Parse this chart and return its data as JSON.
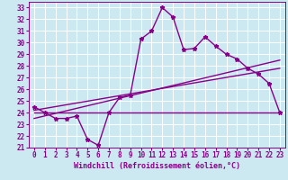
{
  "xlabel": "Windchill (Refroidissement éolien,°C)",
  "bg_color": "#cce8f0",
  "line_color": "#880088",
  "grid_color": "#ffffff",
  "xlim": [
    -0.5,
    23.5
  ],
  "ylim": [
    21,
    33.5
  ],
  "xticks": [
    0,
    1,
    2,
    3,
    4,
    5,
    6,
    7,
    8,
    9,
    10,
    11,
    12,
    13,
    14,
    15,
    16,
    17,
    18,
    19,
    20,
    21,
    22,
    23
  ],
  "yticks": [
    21,
    22,
    23,
    24,
    25,
    26,
    27,
    28,
    29,
    30,
    31,
    32,
    33
  ],
  "series1_x": [
    0,
    1,
    2,
    3,
    4,
    5,
    6,
    7,
    8,
    9,
    10,
    11,
    12,
    13,
    14,
    15,
    16,
    17,
    18,
    19,
    20,
    21,
    22,
    23
  ],
  "series1_y": [
    24.5,
    24.0,
    23.5,
    23.5,
    23.7,
    21.7,
    21.2,
    24.0,
    25.3,
    25.5,
    30.3,
    31.0,
    33.0,
    32.2,
    29.4,
    29.5,
    30.5,
    29.7,
    29.0,
    28.6,
    27.8,
    27.3,
    26.5,
    24.0
  ],
  "line2_x": [
    0,
    23
  ],
  "line2_y": [
    24.0,
    24.0
  ],
  "line3_x": [
    0,
    23
  ],
  "line3_y": [
    23.5,
    28.5
  ],
  "line4_x": [
    0,
    23
  ],
  "line4_y": [
    24.2,
    27.8
  ],
  "xlabel_fontsize": 6,
  "tick_fontsize": 5.5
}
